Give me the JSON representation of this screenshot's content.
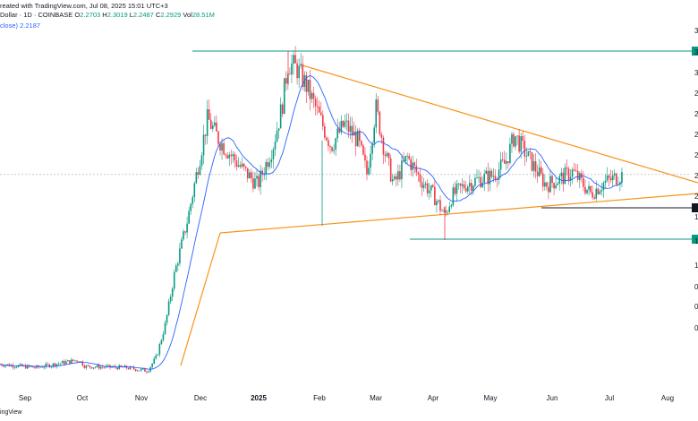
{
  "header": {
    "line1_prefix": "reated with TradingView.com, Jul 08, 2025 15:01 UTC+3",
    "line2_name": "Dollar · 1D · COINBASE",
    "o_label": "O",
    "o_value": "2.2703",
    "h_label": "H",
    "h_value": "2.3019",
    "l_label": "L",
    "l_value": "2.2487",
    "c_label": "C",
    "c_value": "2.2929",
    "vol_label": "Vol",
    "vol_value": "28.51M",
    "line3_label": "close)",
    "line3_value": "2.2187"
  },
  "watermark": "ingView",
  "colors": {
    "up": "#089981",
    "down": "#f23645",
    "ma": "#2962ff",
    "trendline": "#f7931a",
    "level": "#089981",
    "support": "#131722"
  },
  "chart_data": {
    "type": "candlestick",
    "x_labels": [
      "Sep",
      "Oct",
      "Nov",
      "Dec",
      "2025",
      "Feb",
      "Mar",
      "Apr",
      "May",
      "Jun",
      "Jul",
      "Aug"
    ],
    "bold_x_labels": [
      "2025"
    ],
    "y_tick_labels": [
      "3",
      "3",
      "3",
      "2",
      "2",
      "2",
      "2",
      "2",
      "2",
      "1",
      "1",
      "1",
      "0",
      "0",
      "0"
    ],
    "price_axis_markers": [
      "horizontal-resistance",
      "current-support",
      "horizontal-support"
    ],
    "ohlc_points": [
      {
        "x": "Sep",
        "close": 0.58
      },
      {
        "x": "Oct",
        "close": 0.6
      },
      {
        "x": "Nov",
        "close": 0.52
      },
      {
        "x": "Dec",
        "close": 2.4
      },
      {
        "x": "2025",
        "close": 2.4
      },
      {
        "x": "Jan-mid",
        "close": 3.3
      },
      {
        "x": "Feb",
        "close": 2.7
      },
      {
        "x": "Mar",
        "close": 2.2
      },
      {
        "x": "Apr",
        "close": 1.9
      },
      {
        "x": "May",
        "close": 2.35
      },
      {
        "x": "Jun",
        "close": 2.1
      },
      {
        "x": "Jul",
        "close": 2.29
      }
    ],
    "indicators": [
      {
        "name": "moving average",
        "type": "line"
      }
    ],
    "annotations": [
      "descending trendline",
      "ascending trendline",
      "horizontal resistance",
      "horizontal support"
    ],
    "last_price": 2.2929,
    "grid": false
  }
}
